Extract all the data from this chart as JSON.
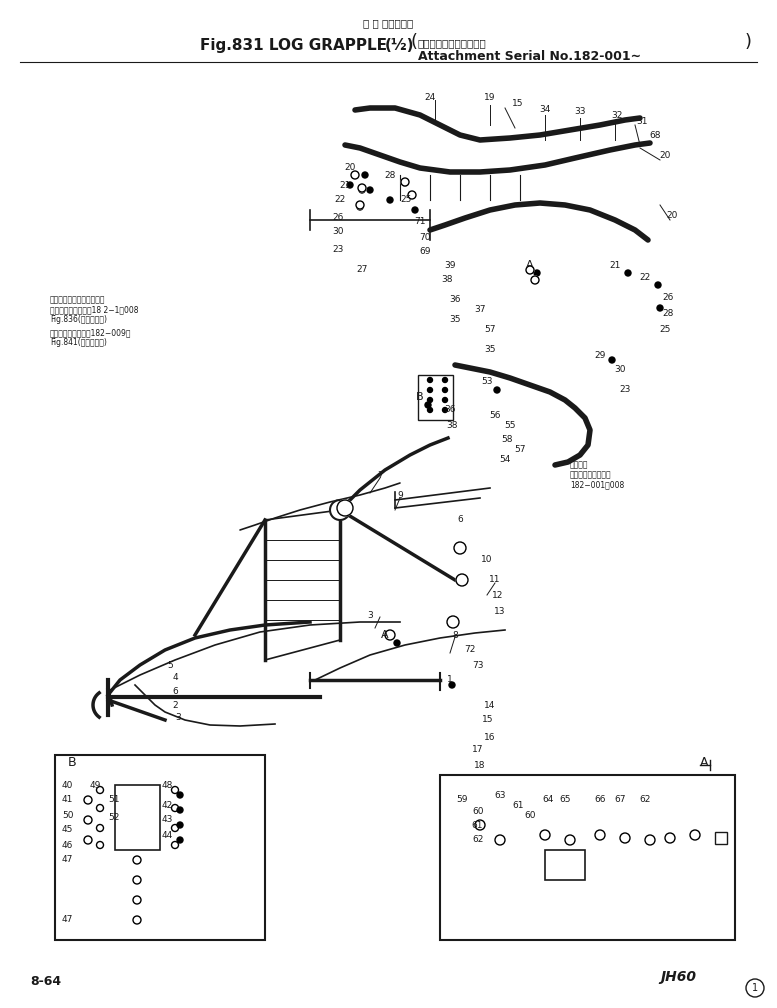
{
  "title_jp": "ロ グ グラップル",
  "title_en": "Fig.831 LOG GRAPPLE",
  "title_fraction": "(½)",
  "title_note_jp": "アタッチメント適用号等",
  "title_note_en": "Attachment Serial No.182-001∼",
  "page_num": "8-64",
  "brand": "JH60",
  "circle_num": "1",
  "bg_color": "#ffffff",
  "ink_color": "#1a1a1a",
  "note_left_1": "共用ハイドロリックライン",
  "note_left_2": "アタッチメント号等18 2−1～008",
  "note_left_3": "Fig.836(本機配管用)",
  "note_left_4": "アタッチメント号等182−009〜",
  "note_left_5": "Fig.841(本機配管用)",
  "note_right_1": "共用指定",
  "note_right_2": "アタッチメント号等",
  "note_right_3": "182−001～008"
}
